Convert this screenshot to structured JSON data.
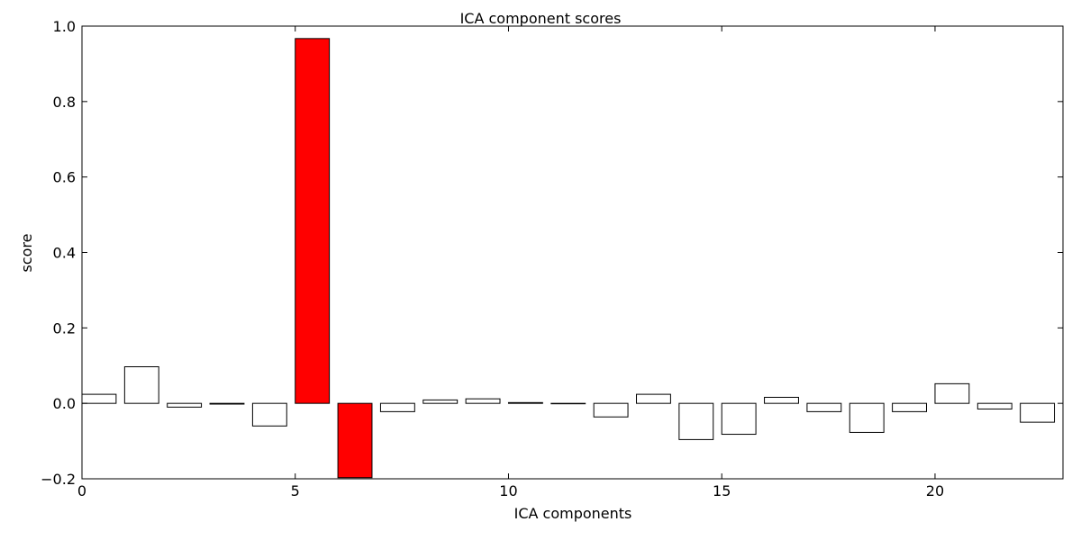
{
  "chart_data": {
    "type": "bar",
    "title": "ICA component scores",
    "xlabel": "ICA components",
    "ylabel": "score",
    "xlim": [
      0,
      23
    ],
    "ylim": [
      -0.2,
      1.0
    ],
    "xticks": [
      0,
      5,
      10,
      15,
      20
    ],
    "xtick_labels": [
      "0",
      "5",
      "10",
      "15",
      "20"
    ],
    "yticks": [
      -0.2,
      0.0,
      0.2,
      0.4,
      0.6,
      0.8,
      1.0
    ],
    "ytick_labels": [
      "−0.2",
      "0.0",
      "0.2",
      "0.4",
      "0.6",
      "0.8",
      "1.0"
    ],
    "grid": false,
    "bar_width": 0.8,
    "x": [
      0,
      1,
      2,
      3,
      4,
      5,
      6,
      7,
      8,
      9,
      10,
      11,
      12,
      13,
      14,
      15,
      16,
      17,
      18,
      19,
      20,
      21,
      22
    ],
    "values": [
      0.024,
      0.097,
      -0.01,
      -0.002,
      -0.06,
      0.967,
      -0.197,
      -0.022,
      0.009,
      0.012,
      0.002,
      -0.001,
      -0.036,
      0.024,
      -0.096,
      -0.082,
      0.016,
      -0.022,
      -0.077,
      -0.022,
      0.052,
      -0.015,
      -0.05
    ],
    "highlighted": [
      5,
      6
    ],
    "colors": {
      "default": "#ffffff",
      "highlight": "#ff0000",
      "edge": "#000000"
    }
  }
}
